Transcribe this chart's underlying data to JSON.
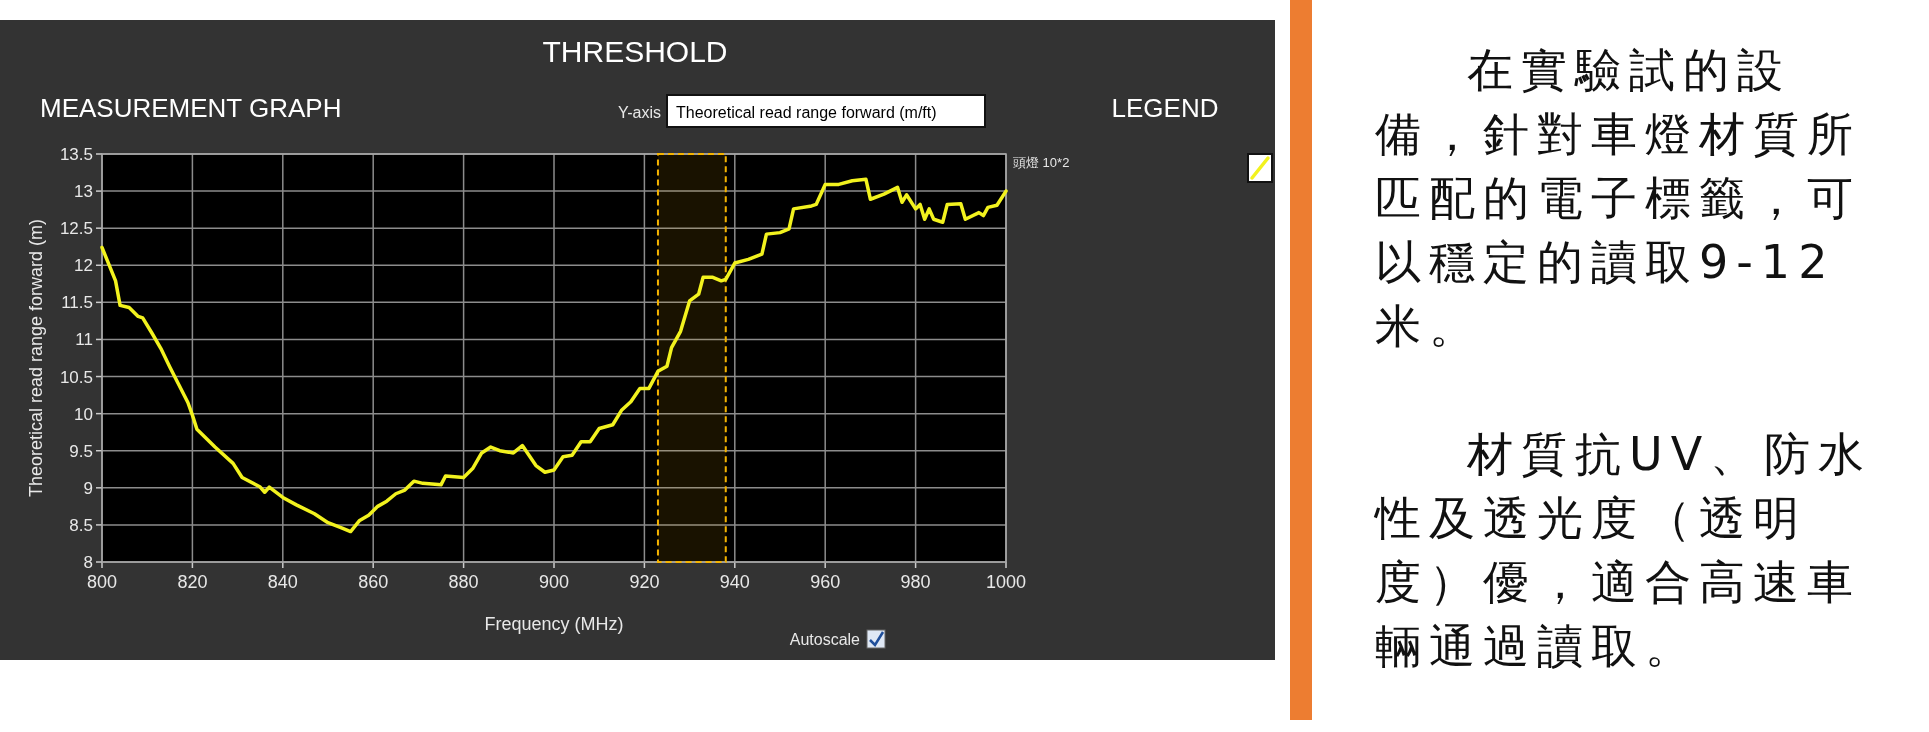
{
  "chart_data": {
    "type": "line",
    "title": "THRESHOLD",
    "xlabel": "Frequency (MHz)",
    "ylabel": "Theoretical read range forward (m)",
    "legend_title": "LEGEND",
    "annotations": [
      "MEASUREMENT GRAPH",
      "Y-axis",
      "Theoretical read range forward (m/ft)",
      "Autoscale",
      "在實驗試的設備，針對車燈材質所匹配的電子標籤，可以穩定的讀取9-12米。",
      "材質抗UV、防水性及透光度（透明度）優，適合高速車輛通過讀取。"
    ],
    "x": [
      800,
      803,
      804,
      806,
      808,
      809,
      811,
      813,
      815,
      817,
      819,
      820,
      821,
      825,
      829,
      831,
      835,
      836,
      837,
      840,
      843,
      847,
      850,
      853,
      855,
      857,
      859,
      861,
      863,
      865,
      867,
      869,
      871,
      875,
      876,
      880,
      882,
      884,
      886,
      888,
      891,
      893,
      896,
      898,
      900,
      902,
      904,
      906,
      908,
      910,
      913,
      915,
      917,
      919,
      921,
      923,
      925,
      926,
      928,
      930,
      932,
      933,
      935,
      937,
      938,
      940,
      943,
      946,
      947,
      950,
      952,
      953,
      957,
      958,
      960,
      963,
      966,
      969,
      970,
      973,
      976,
      977,
      978,
      980,
      981,
      982,
      983,
      984,
      986,
      987,
      990,
      991,
      994,
      995,
      996,
      998,
      1000
    ],
    "series": [
      {
        "name": "頭燈 10*2",
        "color": "#f2f21e",
        "values": [
          12.24,
          11.79,
          11.46,
          11.43,
          11.31,
          11.29,
          11.09,
          10.88,
          10.63,
          10.39,
          10.15,
          9.98,
          9.79,
          9.55,
          9.33,
          9.14,
          9.01,
          8.94,
          9.01,
          8.87,
          8.77,
          8.65,
          8.53,
          8.46,
          8.41,
          8.56,
          8.63,
          8.75,
          8.82,
          8.92,
          8.97,
          9.09,
          9.06,
          9.04,
          9.16,
          9.14,
          9.26,
          9.47,
          9.55,
          9.5,
          9.47,
          9.57,
          9.3,
          9.21,
          9.24,
          9.42,
          9.44,
          9.62,
          9.62,
          9.8,
          9.85,
          10.05,
          10.16,
          10.34,
          10.34,
          10.57,
          10.64,
          10.89,
          11.11,
          11.52,
          11.61,
          11.84,
          11.84,
          11.79,
          11.81,
          12.03,
          12.08,
          12.15,
          12.42,
          12.44,
          12.49,
          12.76,
          12.8,
          12.82,
          13.09,
          13.09,
          13.14,
          13.16,
          12.89,
          12.96,
          13.05,
          12.85,
          12.95,
          12.76,
          12.82,
          12.62,
          12.76,
          12.62,
          12.58,
          12.82,
          12.83,
          12.62,
          12.71,
          12.67,
          12.78,
          12.81,
          13.0
        ]
      }
    ],
    "xlim": [
      800,
      1000
    ],
    "xticks": [
      800,
      820,
      840,
      860,
      880,
      900,
      920,
      940,
      960,
      980,
      1000
    ],
    "ylim": [
      8,
      13.5
    ],
    "yticks": [
      8,
      8.5,
      9,
      9.5,
      10,
      10.5,
      11,
      11.5,
      12,
      12.5,
      13,
      13.5
    ],
    "grid": true,
    "legend": "top right",
    "bands": [
      {
        "axis": "x",
        "from": 923,
        "to": 938,
        "label": null,
        "color": "#f5b400"
      }
    ]
  }
}
